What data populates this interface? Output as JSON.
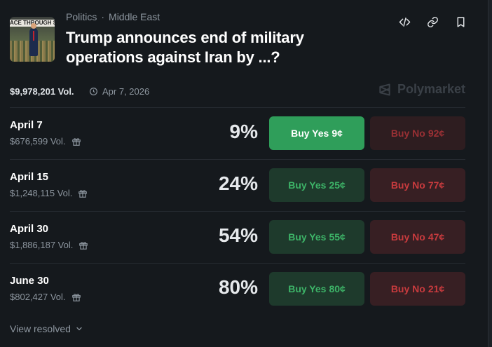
{
  "header": {
    "image_banner_text": "ACE THROUGH STRENGTH",
    "category": "Politics",
    "subcategory": "Middle East",
    "title": "Trump announces end of military operations against Iran by ...?",
    "icons": [
      "embed-icon",
      "link-icon",
      "bookmark-icon"
    ]
  },
  "meta": {
    "volume": "$9,978,201 Vol.",
    "end_date": "Apr 7, 2026",
    "brand": "Polymarket"
  },
  "outcomes": [
    {
      "label": "April 7",
      "volume": "$676,599 Vol.",
      "percent": "9%",
      "yes_label": "Buy Yes",
      "yes_price": "9¢",
      "no_label": "Buy No",
      "no_price": "92¢"
    },
    {
      "label": "April 15",
      "volume": "$1,248,115 Vol.",
      "percent": "24%",
      "yes_label": "Buy Yes",
      "yes_price": "25¢",
      "no_label": "Buy No",
      "no_price": "77¢"
    },
    {
      "label": "April 30",
      "volume": "$1,886,187 Vol.",
      "percent": "54%",
      "yes_label": "Buy Yes",
      "yes_price": "55¢",
      "no_label": "Buy No",
      "no_price": "47¢"
    },
    {
      "label": "June 30",
      "volume": "$802,427 Vol.",
      "percent": "80%",
      "yes_label": "Buy Yes",
      "yes_price": "80¢",
      "no_label": "Buy No",
      "no_price": "21¢"
    }
  ],
  "footer": {
    "view_resolved": "View resolved"
  },
  "colors": {
    "background": "#15191d",
    "yes_active": "#2f9e5a",
    "yes": "#3db468",
    "no": "#c93b3e"
  }
}
